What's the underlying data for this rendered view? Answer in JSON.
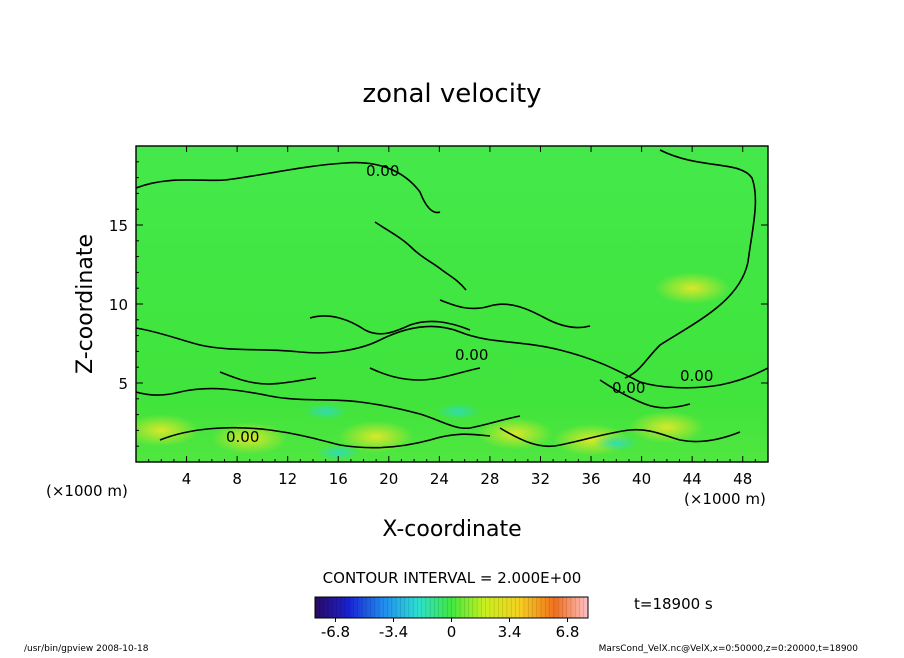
{
  "chart_data": {
    "type": "heatmap",
    "title": "zonal velocity",
    "xlabel": "X-coordinate",
    "ylabel": "Z-coordinate",
    "x_units": "(×1000 m)",
    "y_units": "(×1000 m)",
    "xlim": [
      0,
      50
    ],
    "ylim": [
      0,
      20
    ],
    "x_ticks": [
      4,
      8,
      12,
      16,
      20,
      24,
      28,
      32,
      36,
      40,
      44,
      48
    ],
    "y_ticks": [
      5,
      10,
      15
    ],
    "contour_interval_label": "CONTOUR INTERVAL = 2.000E+00",
    "contour_labels": [
      "0.00",
      "0.00",
      "0.00",
      "0.00",
      "0.00"
    ],
    "time_label": "t=18900 s",
    "colorbar": {
      "min": -8,
      "max": 8,
      "tick_labels": [
        "-6.8",
        "-3.4",
        "0",
        "3.4",
        "6.8"
      ],
      "tick_values": [
        -6.8,
        -3.4,
        0,
        3.4,
        6.8
      ]
    },
    "footer_left": "/usr/bin/gpview   2008-10-18",
    "footer_right": "MarsCond_VelX.nc@VelX,x=0:50000,z=0:20000,t=18900",
    "grid": false,
    "field_summary": "mostly near 0 (green); positive bands near z=1-2 (yellow/orange), weak negative patches (cyan) near the surface"
  }
}
